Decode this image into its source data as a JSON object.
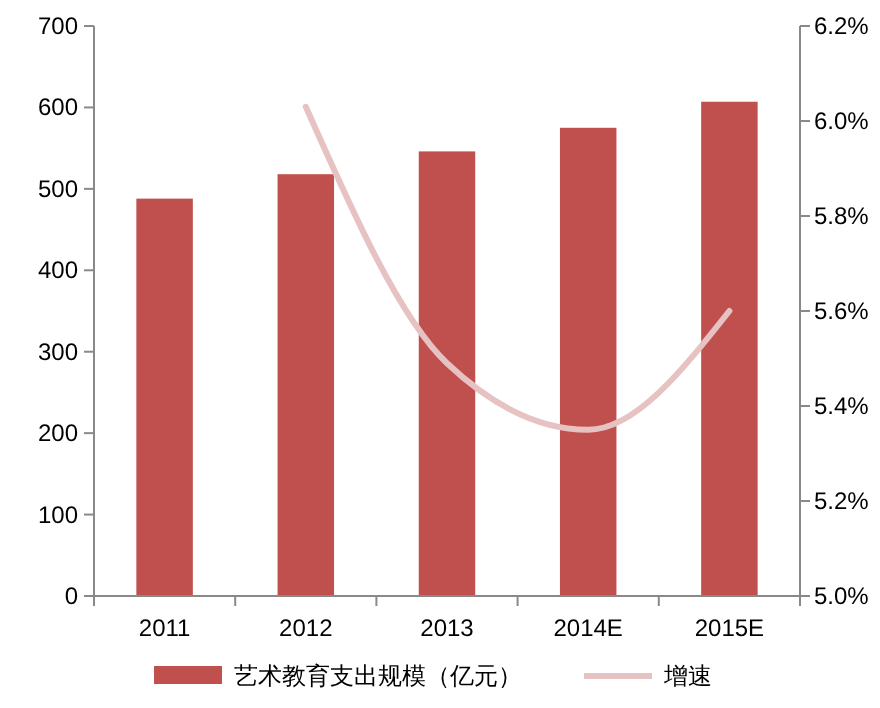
{
  "chart_data": {
    "type": "bar",
    "categories": [
      "2011",
      "2012",
      "2013",
      "2014E",
      "2015E"
    ],
    "series": [
      {
        "name": "艺术教育支出规模（亿元）",
        "color": "#c0504d",
        "values": [
          488,
          518,
          546,
          575,
          607
        ]
      },
      {
        "name": "增速",
        "type": "line",
        "axis": "y2",
        "color": "#e6c3c2",
        "values": [
          null,
          6.03,
          5.49,
          5.35,
          5.6
        ]
      }
    ],
    "ylim": [
      0,
      700
    ],
    "yticks": [
      0,
      100,
      200,
      300,
      400,
      500,
      600,
      700
    ],
    "y2lim": [
      5.0,
      6.2
    ],
    "y2ticks": [
      {
        "value": 5.0,
        "label": "5.0%"
      },
      {
        "value": 5.2,
        "label": "5.2%"
      },
      {
        "value": 5.4,
        "label": "5.4%"
      },
      {
        "value": 5.6,
        "label": "5.6%"
      },
      {
        "value": 5.8,
        "label": "5.8%"
      },
      {
        "value": 6.0,
        "label": "6.0%"
      },
      {
        "value": 6.2,
        "label": "6.2%"
      }
    ],
    "legend": "bottom",
    "grid": false
  }
}
